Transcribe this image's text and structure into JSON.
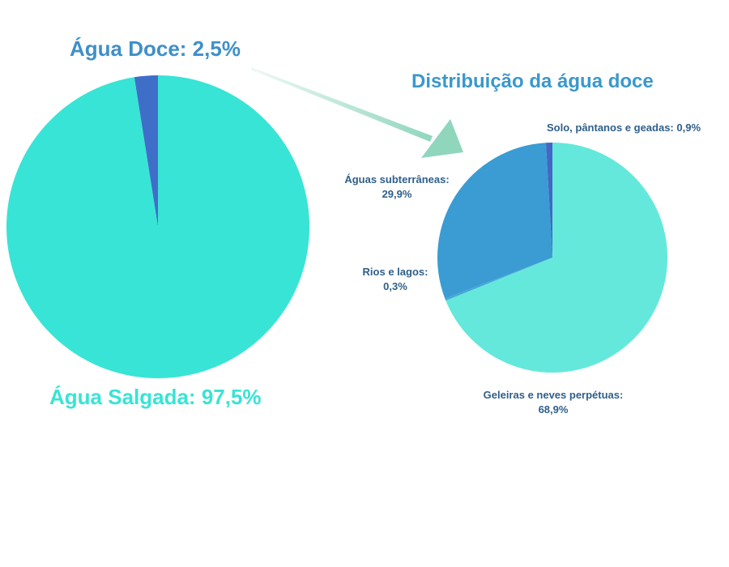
{
  "chart_data": [
    {
      "type": "pie",
      "title": "",
      "slices": [
        {
          "name": "Água Salgada",
          "value": 97.5,
          "label": "Água Salgada: 97,5%",
          "color": "#38e4d5"
        },
        {
          "name": "Água Doce",
          "value": 2.5,
          "label": "Água Doce: 2,5%",
          "color": "#3f6ec8"
        }
      ]
    },
    {
      "type": "pie",
      "title": "Distribuição da água doce",
      "slices": [
        {
          "name": "Geleiras e neves perpétuas",
          "value": 68.9,
          "label_line1": "Geleiras e neves perpétuas:",
          "label_line2": "68,9%",
          "color": "#64e8db"
        },
        {
          "name": "Rios e lagos",
          "value": 0.3,
          "label_line1": "Rios e lagos:",
          "label_line2": "0,3%",
          "color": "#45a7d4"
        },
        {
          "name": "Águas subterrâneas",
          "value": 29.9,
          "label_line1": "Águas subterrâneas:",
          "label_line2": "29,9%",
          "color": "#3a9cd3"
        },
        {
          "name": "Solo, pântanos e geadas",
          "value": 0.9,
          "label": "Solo, pântanos e geadas: 0,9%",
          "color": "#4466c4"
        }
      ]
    }
  ],
  "colors": {
    "title_text": "#3a98cc",
    "label_text": "#2f5f8a",
    "salt_label_text": "#38e4d5",
    "fresh_label_text": "#3f8fc8",
    "arrow": "#8fd6bd"
  }
}
